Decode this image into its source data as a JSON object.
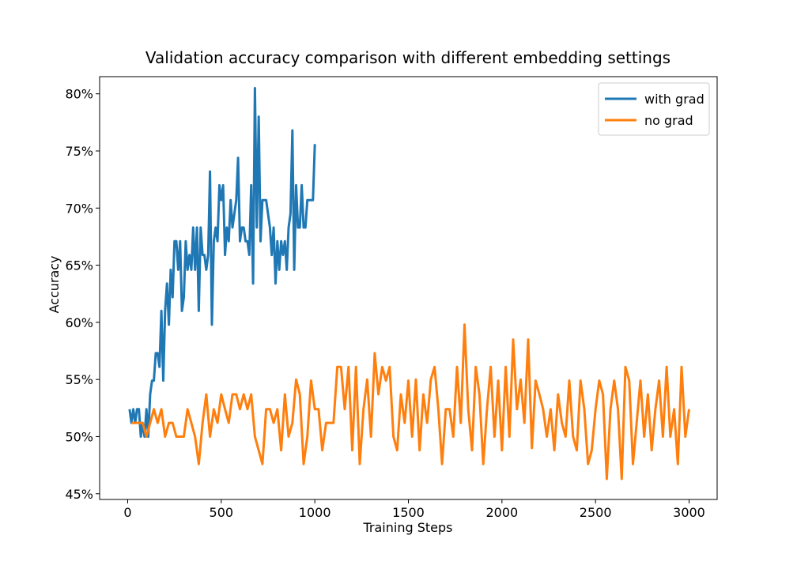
{
  "chart_data": {
    "type": "line",
    "title": "Validation accuracy comparison with different embedding settings",
    "xlabel": "Training Steps",
    "ylabel": "Accuracy",
    "xlim": [
      -150,
      3150
    ],
    "xticks": [
      0,
      500,
      1000,
      1500,
      2000,
      2500,
      3000
    ],
    "ylim": [
      44.5,
      81.5
    ],
    "yticks": [
      {
        "value": 45,
        "label": "45%"
      },
      {
        "value": 50,
        "label": "50%"
      },
      {
        "value": 55,
        "label": "55%"
      },
      {
        "value": 60,
        "label": "60%"
      },
      {
        "value": 65,
        "label": "65%"
      },
      {
        "value": 70,
        "label": "70%"
      },
      {
        "value": 75,
        "label": "75%"
      },
      {
        "value": 80,
        "label": "80%"
      }
    ],
    "legend": "upper right",
    "series": [
      {
        "name": "with grad",
        "color": "#1f77b4",
        "x": [
          10,
          20,
          30,
          40,
          50,
          60,
          70,
          80,
          90,
          100,
          110,
          120,
          130,
          140,
          150,
          160,
          170,
          180,
          190,
          200,
          210,
          220,
          230,
          240,
          250,
          260,
          270,
          280,
          290,
          300,
          310,
          320,
          330,
          340,
          350,
          360,
          370,
          380,
          390,
          400,
          410,
          420,
          430,
          440,
          450,
          460,
          470,
          480,
          490,
          500,
          510,
          520,
          530,
          540,
          550,
          560,
          570,
          580,
          590,
          600,
          610,
          620,
          630,
          640,
          650,
          660,
          670,
          680,
          690,
          700,
          710,
          720,
          730,
          740,
          750,
          760,
          770,
          780,
          790,
          800,
          810,
          820,
          830,
          840,
          850,
          860,
          870,
          880,
          890,
          900,
          910,
          920,
          930,
          940,
          950,
          960,
          970,
          980,
          990,
          1000
        ],
        "values": [
          52.4,
          51.2,
          52.4,
          51.2,
          52.4,
          52.4,
          50.0,
          51.2,
          50.0,
          52.4,
          50.0,
          53.7,
          54.9,
          54.9,
          57.3,
          57.3,
          56.1,
          61.0,
          54.9,
          61.0,
          63.4,
          59.8,
          64.6,
          62.2,
          67.1,
          67.1,
          64.6,
          67.1,
          61.0,
          62.2,
          67.1,
          64.6,
          65.9,
          64.6,
          68.3,
          64.6,
          68.3,
          61.0,
          68.3,
          65.9,
          65.9,
          64.6,
          65.9,
          73.2,
          59.8,
          67.1,
          68.3,
          67.1,
          72.0,
          70.7,
          72.0,
          65.9,
          68.3,
          67.1,
          70.7,
          68.3,
          69.5,
          70.7,
          74.4,
          67.1,
          68.3,
          68.3,
          67.1,
          67.1,
          65.9,
          72.0,
          63.4,
          80.5,
          68.3,
          78.0,
          67.1,
          70.7,
          70.7,
          70.7,
          69.5,
          68.3,
          65.9,
          68.3,
          63.4,
          67.1,
          64.6,
          67.1,
          65.9,
          67.1,
          64.6,
          68.3,
          69.5,
          76.8,
          64.6,
          72.0,
          68.3,
          68.3,
          72.0,
          68.3,
          68.3,
          70.7,
          70.7,
          70.7,
          70.7,
          75.6
        ]
      },
      {
        "name": "no grad",
        "color": "#ff7f0e",
        "x": [
          20,
          40,
          60,
          80,
          100,
          120,
          140,
          160,
          180,
          200,
          220,
          240,
          260,
          280,
          300,
          320,
          340,
          360,
          380,
          400,
          420,
          440,
          460,
          480,
          500,
          520,
          540,
          560,
          580,
          600,
          620,
          640,
          660,
          680,
          700,
          720,
          740,
          760,
          780,
          800,
          820,
          840,
          860,
          880,
          900,
          920,
          940,
          960,
          980,
          1000,
          1020,
          1040,
          1060,
          1080,
          1100,
          1120,
          1140,
          1160,
          1180,
          1200,
          1220,
          1240,
          1260,
          1280,
          1300,
          1320,
          1340,
          1360,
          1380,
          1400,
          1420,
          1440,
          1460,
          1480,
          1500,
          1520,
          1540,
          1560,
          1580,
          1600,
          1620,
          1640,
          1660,
          1680,
          1700,
          1720,
          1740,
          1760,
          1780,
          1800,
          1820,
          1840,
          1860,
          1880,
          1900,
          1920,
          1940,
          1960,
          1980,
          2000,
          2020,
          2040,
          2060,
          2080,
          2100,
          2120,
          2140,
          2160,
          2180,
          2200,
          2220,
          2240,
          2260,
          2280,
          2300,
          2320,
          2340,
          2360,
          2380,
          2400,
          2420,
          2440,
          2460,
          2480,
          2500,
          2520,
          2540,
          2560,
          2580,
          2600,
          2620,
          2640,
          2660,
          2680,
          2700,
          2720,
          2740,
          2760,
          2780,
          2800,
          2820,
          2840,
          2860,
          2880,
          2900,
          2920,
          2940,
          2960,
          2980,
          3000
        ],
        "values": [
          51.2,
          51.2,
          51.2,
          51.2,
          50.0,
          51.2,
          52.4,
          51.2,
          52.4,
          50.0,
          51.2,
          51.2,
          50.0,
          50.0,
          50.0,
          52.4,
          51.2,
          50.0,
          47.6,
          51.2,
          53.7,
          50.0,
          52.4,
          51.2,
          53.7,
          52.4,
          51.2,
          53.7,
          53.7,
          52.4,
          53.7,
          52.4,
          53.7,
          50.0,
          48.8,
          47.6,
          52.4,
          52.4,
          51.2,
          52.4,
          48.8,
          53.7,
          50.0,
          51.2,
          55.0,
          53.7,
          47.6,
          50.0,
          54.9,
          52.4,
          52.4,
          48.8,
          51.2,
          51.2,
          51.2,
          56.1,
          56.1,
          52.4,
          56.1,
          48.8,
          56.1,
          47.6,
          52.4,
          55.0,
          50.0,
          57.3,
          53.7,
          56.1,
          54.9,
          56.1,
          50.0,
          48.8,
          53.7,
          51.2,
          54.9,
          50.0,
          55.0,
          48.8,
          53.7,
          51.2,
          55.0,
          56.1,
          52.4,
          47.6,
          52.4,
          52.4,
          50.0,
          56.1,
          51.2,
          59.8,
          52.4,
          48.8,
          56.1,
          53.7,
          47.6,
          52.4,
          56.1,
          50.0,
          54.9,
          48.8,
          56.1,
          50.0,
          58.5,
          52.4,
          55.0,
          51.2,
          58.5,
          49.0,
          54.9,
          53.7,
          52.4,
          50.0,
          52.4,
          48.8,
          53.7,
          51.2,
          50.0,
          54.9,
          50.0,
          48.8,
          54.9,
          52.4,
          47.6,
          48.8,
          52.4,
          54.9,
          53.7,
          46.3,
          52.4,
          54.9,
          52.4,
          46.3,
          56.1,
          54.9,
          47.6,
          51.2,
          54.9,
          50.0,
          53.7,
          48.8,
          52.4,
          54.9,
          50.0,
          56.1,
          50.0,
          52.4,
          47.6,
          56.1,
          50.0,
          52.4
        ]
      }
    ]
  }
}
